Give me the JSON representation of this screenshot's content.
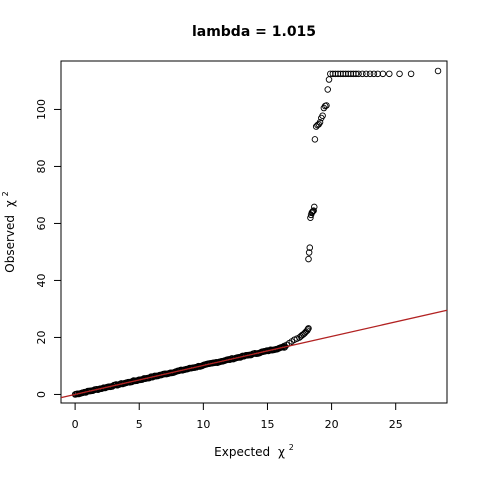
{
  "chart_data": {
    "type": "scatter",
    "title": "lambda = 1.015",
    "xlabel_main": "Expected",
    "xlabel_symbol": "χ",
    "xlabel_sup": "2",
    "ylabel_main": "Observed",
    "ylabel_symbol": "χ",
    "ylabel_sup": "2",
    "xlim": [
      -1.1,
      29.0
    ],
    "ylim": [
      -3.0,
      117.0
    ],
    "x_ticks": [
      0,
      5,
      10,
      15,
      20,
      25
    ],
    "x_tick_labels": [
      "0",
      "5",
      "10",
      "15",
      "20",
      "25"
    ],
    "y_ticks": [
      0,
      20,
      40,
      60,
      80,
      100
    ],
    "y_tick_labels": [
      "0",
      "20",
      "40",
      "60",
      "80",
      "100"
    ],
    "line_segments": [
      [
        0,
        0
      ],
      [
        16.2,
        16.5
      ]
    ],
    "points": [
      [
        16.3,
        17.0
      ],
      [
        16.5,
        17.4
      ],
      [
        16.7,
        18.0
      ],
      [
        16.9,
        18.6
      ],
      [
        17.1,
        19.2
      ],
      [
        17.3,
        19.6
      ],
      [
        17.5,
        20.0
      ],
      [
        17.6,
        20.4
      ],
      [
        17.7,
        20.8
      ],
      [
        17.8,
        21.1
      ],
      [
        17.9,
        21.5
      ],
      [
        18.0,
        22.0
      ],
      [
        18.1,
        22.4
      ],
      [
        18.15,
        22.9
      ],
      [
        18.2,
        23.2
      ],
      [
        18.2,
        47.5
      ],
      [
        18.25,
        49.8
      ],
      [
        18.3,
        51.5
      ],
      [
        18.35,
        62.0
      ],
      [
        18.4,
        63.0
      ],
      [
        18.45,
        63.7
      ],
      [
        18.5,
        64.0
      ],
      [
        18.55,
        64.3
      ],
      [
        18.6,
        64.5
      ],
      [
        18.65,
        65.8
      ],
      [
        18.7,
        89.5
      ],
      [
        18.8,
        94.0
      ],
      [
        18.9,
        94.5
      ],
      [
        19.0,
        94.8
      ],
      [
        19.1,
        95.5
      ],
      [
        19.2,
        97.0
      ],
      [
        19.3,
        97.8
      ],
      [
        19.4,
        100.5
      ],
      [
        19.5,
        101.2
      ],
      [
        19.6,
        101.4
      ],
      [
        19.7,
        107.0
      ],
      [
        19.8,
        110.5
      ],
      [
        19.9,
        112.5
      ],
      [
        20.1,
        112.5
      ],
      [
        20.3,
        112.5
      ],
      [
        20.5,
        112.5
      ],
      [
        20.7,
        112.5
      ],
      [
        20.9,
        112.5
      ],
      [
        21.1,
        112.5
      ],
      [
        21.3,
        112.5
      ],
      [
        21.5,
        112.5
      ],
      [
        21.7,
        112.5
      ],
      [
        21.9,
        112.5
      ],
      [
        22.1,
        112.5
      ],
      [
        22.4,
        112.5
      ],
      [
        22.7,
        112.5
      ],
      [
        23.0,
        112.5
      ],
      [
        23.3,
        112.5
      ],
      [
        23.6,
        112.5
      ],
      [
        24.0,
        112.5
      ],
      [
        24.5,
        112.5
      ],
      [
        25.3,
        112.5
      ],
      [
        26.2,
        112.5
      ],
      [
        28.3,
        113.5
      ]
    ],
    "dense_band": {
      "x_start": 0.0,
      "x_end": 16.3,
      "count": 120,
      "jitter": 0.35
    },
    "colors": {
      "points": "#000000",
      "line": "#b22222",
      "axis": "#000000"
    }
  }
}
